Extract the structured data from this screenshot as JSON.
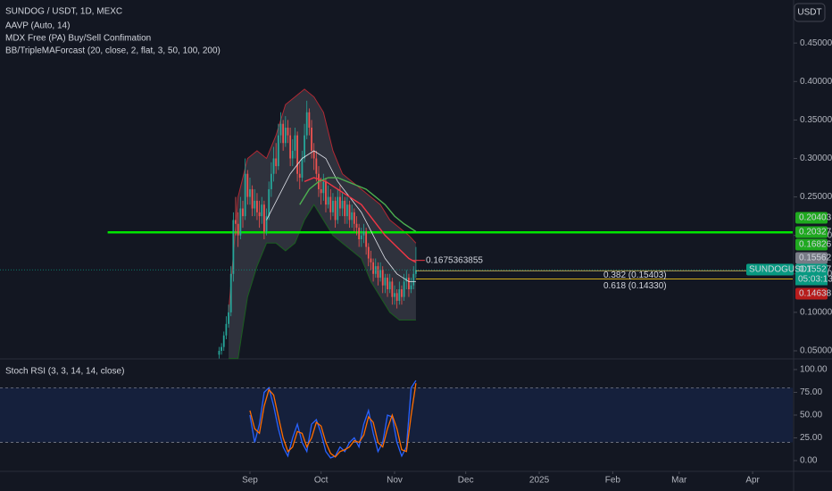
{
  "chart_data": [
    {
      "type": "candlestick",
      "title": "SUNDOG / USDT, 1D, MEXC",
      "indicators": [
        "AAVP (Auto, 14)",
        "MDX Free (PA) Buy/Sell Confimation",
        "BB/TripleMAForcast (20, close, 2, flat, 3, 50, 100, 200)"
      ],
      "currency_button": "USDT",
      "up_color": "#26a69a",
      "down_color": "#ef5350",
      "xlim": [
        -92.4,
        241.9
      ],
      "xticks": [
        {
          "value": 13,
          "label": "Sep"
        },
        {
          "value": 43,
          "label": "Oct"
        },
        {
          "value": 74,
          "label": "Nov"
        },
        {
          "value": 104,
          "label": "Dec"
        },
        {
          "value": 135,
          "label": "2025"
        },
        {
          "value": 166,
          "label": "Feb"
        },
        {
          "value": 194,
          "label": "Mar"
        },
        {
          "value": 225,
          "label": "Apr"
        }
      ],
      "ylim": [
        0.0407,
        0.5059
      ],
      "yticks": [
        {
          "value": 0.05,
          "label": "0.05000"
        },
        {
          "value": 0.1,
          "label": "0.10000"
        },
        {
          "value": 0.15,
          "label": "0.15000"
        },
        {
          "value": 0.2,
          "label": "0.20000"
        },
        {
          "value": 0.25,
          "label": "0.25000"
        },
        {
          "value": 0.3,
          "label": "0.30000"
        },
        {
          "value": 0.35,
          "label": "0.35000"
        },
        {
          "value": 0.4,
          "label": "0.40000"
        },
        {
          "value": 0.45,
          "label": "0.45000"
        }
      ],
      "open": [
        0.045,
        0.05,
        0.055,
        0.07,
        0.085,
        0.1,
        0.15,
        0.22,
        0.215,
        0.2,
        0.235,
        0.225,
        0.28,
        0.25,
        0.26,
        0.235,
        0.245,
        0.23,
        0.225,
        0.24,
        0.205,
        0.225,
        0.26,
        0.28,
        0.3,
        0.29,
        0.33,
        0.345,
        0.32,
        0.34,
        0.33,
        0.3,
        0.31,
        0.33,
        0.28,
        0.275,
        0.3,
        0.33,
        0.36,
        0.34,
        0.31,
        0.3,
        0.28,
        0.26,
        0.255,
        0.27,
        0.24,
        0.25,
        0.23,
        0.245,
        0.22,
        0.25,
        0.235,
        0.245,
        0.225,
        0.24,
        0.22,
        0.23,
        0.215,
        0.21,
        0.195,
        0.2,
        0.205,
        0.185,
        0.17,
        0.165,
        0.15,
        0.16,
        0.145,
        0.155,
        0.135,
        0.145,
        0.13,
        0.14,
        0.12,
        0.125,
        0.115,
        0.13,
        0.12,
        0.14,
        0.145,
        0.13,
        0.135,
        0.15
      ],
      "high": [
        0.055,
        0.06,
        0.075,
        0.095,
        0.11,
        0.16,
        0.23,
        0.25,
        0.23,
        0.25,
        0.245,
        0.3,
        0.285,
        0.275,
        0.265,
        0.26,
        0.255,
        0.245,
        0.25,
        0.245,
        0.235,
        0.27,
        0.295,
        0.315,
        0.32,
        0.345,
        0.36,
        0.35,
        0.355,
        0.35,
        0.34,
        0.325,
        0.34,
        0.335,
        0.295,
        0.31,
        0.345,
        0.375,
        0.365,
        0.35,
        0.32,
        0.31,
        0.29,
        0.275,
        0.28,
        0.275,
        0.265,
        0.26,
        0.255,
        0.25,
        0.26,
        0.265,
        0.255,
        0.25,
        0.25,
        0.245,
        0.24,
        0.235,
        0.225,
        0.215,
        0.21,
        0.215,
        0.21,
        0.19,
        0.18,
        0.17,
        0.17,
        0.165,
        0.165,
        0.16,
        0.15,
        0.15,
        0.15,
        0.145,
        0.135,
        0.13,
        0.14,
        0.135,
        0.15,
        0.155,
        0.15,
        0.145,
        0.16,
        0.185
      ],
      "low": [
        0.04,
        0.045,
        0.05,
        0.065,
        0.08,
        0.095,
        0.14,
        0.2,
        0.185,
        0.195,
        0.21,
        0.22,
        0.24,
        0.24,
        0.225,
        0.225,
        0.22,
        0.21,
        0.215,
        0.195,
        0.2,
        0.22,
        0.25,
        0.27,
        0.28,
        0.285,
        0.32,
        0.31,
        0.315,
        0.32,
        0.29,
        0.29,
        0.3,
        0.27,
        0.26,
        0.27,
        0.295,
        0.325,
        0.33,
        0.3,
        0.285,
        0.27,
        0.25,
        0.24,
        0.245,
        0.23,
        0.235,
        0.22,
        0.225,
        0.21,
        0.215,
        0.225,
        0.225,
        0.215,
        0.215,
        0.21,
        0.21,
        0.205,
        0.2,
        0.185,
        0.185,
        0.19,
        0.175,
        0.16,
        0.155,
        0.14,
        0.145,
        0.135,
        0.14,
        0.125,
        0.125,
        0.12,
        0.125,
        0.11,
        0.11,
        0.105,
        0.11,
        0.11,
        0.115,
        0.13,
        0.12,
        0.125,
        0.13,
        0.145
      ],
      "close": [
        0.05,
        0.055,
        0.07,
        0.085,
        0.1,
        0.15,
        0.22,
        0.215,
        0.2,
        0.235,
        0.225,
        0.28,
        0.25,
        0.26,
        0.235,
        0.245,
        0.23,
        0.225,
        0.24,
        0.205,
        0.225,
        0.26,
        0.28,
        0.3,
        0.29,
        0.33,
        0.345,
        0.32,
        0.34,
        0.33,
        0.3,
        0.31,
        0.33,
        0.28,
        0.275,
        0.3,
        0.33,
        0.36,
        0.34,
        0.31,
        0.3,
        0.28,
        0.26,
        0.255,
        0.27,
        0.24,
        0.25,
        0.23,
        0.245,
        0.22,
        0.25,
        0.235,
        0.245,
        0.225,
        0.24,
        0.22,
        0.23,
        0.215,
        0.21,
        0.195,
        0.2,
        0.205,
        0.185,
        0.17,
        0.165,
        0.15,
        0.16,
        0.145,
        0.155,
        0.135,
        0.145,
        0.13,
        0.14,
        0.12,
        0.125,
        0.115,
        0.13,
        0.12,
        0.14,
        0.145,
        0.13,
        0.135,
        0.15,
        0.155
      ],
      "bands": {
        "color": "#9598a1",
        "upper": {
          "color": "#b22833",
          "x": [
            4,
            8,
            12,
            16,
            20,
            24,
            28,
            32,
            36,
            40,
            44,
            48,
            52,
            56,
            60,
            64,
            68,
            72,
            76,
            80,
            83
          ],
          "values": [
            0.1,
            0.25,
            0.3,
            0.31,
            0.3,
            0.33,
            0.37,
            0.38,
            0.39,
            0.38,
            0.36,
            0.31,
            0.28,
            0.27,
            0.26,
            0.25,
            0.24,
            0.22,
            0.21,
            0.2,
            0.19
          ]
        },
        "lower": {
          "color": "#1b5e20",
          "x": [
            4,
            8,
            12,
            16,
            20,
            24,
            28,
            32,
            36,
            40,
            44,
            48,
            52,
            56,
            60,
            64,
            68,
            72,
            76,
            80,
            83
          ],
          "values": [
            0.04,
            0.04,
            0.12,
            0.16,
            0.19,
            0.19,
            0.18,
            0.19,
            0.22,
            0.24,
            0.22,
            0.2,
            0.19,
            0.18,
            0.17,
            0.14,
            0.12,
            0.1,
            0.09,
            0.09,
            0.09
          ]
        }
      },
      "lines": [
        {
          "color": "#e0e3eb",
          "x": [
            20,
            25,
            30,
            35,
            40,
            45,
            50,
            55,
            60,
            65,
            70,
            75,
            80,
            83
          ],
          "values": [
            0.22,
            0.25,
            0.28,
            0.3,
            0.31,
            0.3,
            0.27,
            0.25,
            0.23,
            0.2,
            0.17,
            0.15,
            0.14,
            0.14
          ]
        },
        {
          "color": "#f23645",
          "x": [
            36,
            40,
            45,
            50,
            55,
            60,
            65,
            70,
            75,
            80,
            83
          ],
          "values": [
            0.27,
            0.275,
            0.27,
            0.26,
            0.25,
            0.24,
            0.22,
            0.2,
            0.185,
            0.17,
            0.165
          ]
        },
        {
          "color": "#4caf50",
          "x": [
            34,
            38,
            42,
            46,
            50,
            54,
            58,
            62,
            66,
            70,
            74,
            78,
            83
          ],
          "values": [
            0.24,
            0.26,
            0.27,
            0.275,
            0.275,
            0.27,
            0.265,
            0.26,
            0.25,
            0.24,
            0.225,
            0.215,
            0.205
          ]
        }
      ],
      "level": {
        "value": 0.20403,
        "x_start": -47,
        "color": "#00e600"
      },
      "fib_levels": [
        {
          "label": "0.382 (0.15403)",
          "value": 0.15403,
          "color": "#c9b458"
        },
        {
          "label": "0.618 (0.14330)",
          "value": 0.1433,
          "color": "#f0c419"
        }
      ],
      "annotation": {
        "label": "0.1675363855",
        "value": 0.1675363855,
        "color": "#f23645"
      },
      "price_labels": [
        {
          "value": 0.20403,
          "color": "#1fa91f"
        },
        {
          "value": 0.20327,
          "color": "#1fa91f"
        },
        {
          "value": 0.16826,
          "color": "#1fa91f"
        },
        {
          "value": 0.15562,
          "color": "#787b86"
        },
        {
          "value": 0.15527,
          "color": "#089981",
          "name": "SUNDOGUSDT"
        },
        {
          "value": 0.14638,
          "color": "#b71c1c"
        }
      ],
      "countdown": "05:03:13"
    },
    {
      "type": "line",
      "title": "Stoch RSI (3, 3, 14, 14, close)",
      "ylim": [
        -11.8,
        108.8
      ],
      "yticks": [
        {
          "value": 0,
          "label": "0.00"
        },
        {
          "value": 25,
          "label": "25.00"
        },
        {
          "value": 50,
          "label": "50.00"
        },
        {
          "value": 75,
          "label": "75.00"
        },
        {
          "value": 100,
          "label": "100.00"
        }
      ],
      "band": [
        20,
        80
      ],
      "band_color": "#2962ff",
      "x": [
        13,
        15,
        17,
        19,
        21,
        23,
        25,
        27,
        29,
        31,
        33,
        35,
        37,
        39,
        41,
        43,
        45,
        47,
        49,
        51,
        53,
        55,
        57,
        59,
        61,
        63,
        65,
        67,
        69,
        71,
        73,
        75,
        77,
        79,
        81,
        83
      ],
      "series": [
        {
          "color": "#2962ff",
          "values": [
            50,
            20,
            40,
            75,
            80,
            60,
            35,
            15,
            5,
            25,
            40,
            20,
            10,
            40,
            45,
            30,
            10,
            3,
            5,
            15,
            10,
            20,
            25,
            15,
            40,
            55,
            30,
            10,
            20,
            50,
            48,
            20,
            5,
            15,
            80,
            88
          ]
        },
        {
          "color": "#ff6d00",
          "values": [
            55,
            35,
            30,
            60,
            78,
            72,
            48,
            25,
            10,
            15,
            32,
            30,
            15,
            25,
            42,
            38,
            20,
            8,
            4,
            10,
            12,
            15,
            22,
            20,
            28,
            48,
            42,
            20,
            15,
            35,
            50,
            35,
            12,
            10,
            50,
            85
          ]
        }
      ]
    }
  ]
}
